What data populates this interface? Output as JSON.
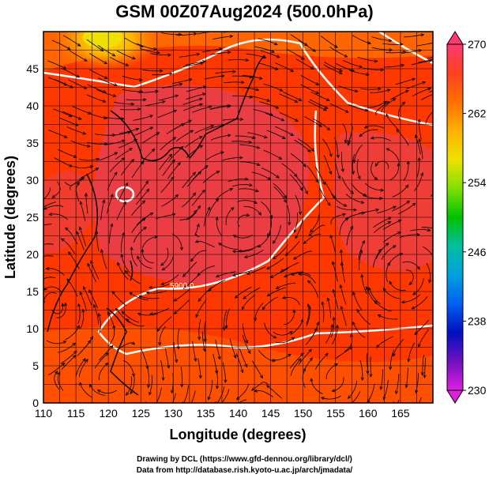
{
  "title": "GSM 00Z07Aug2024 (500.0hPa)",
  "map": {
    "x_axis": {
      "label": "Longitude (degrees)",
      "min": 110,
      "max": 170,
      "ticks": [
        "110",
        "115",
        "120",
        "125",
        "130",
        "135",
        "140",
        "145",
        "150",
        "155",
        "160",
        "165"
      ],
      "tick_values": [
        110,
        115,
        120,
        125,
        130,
        135,
        140,
        145,
        150,
        155,
        160,
        165
      ]
    },
    "y_axis": {
      "label": "Latitude  (degrees)",
      "min": 0,
      "max": 50,
      "ticks": [
        "0",
        "5",
        "10",
        "15",
        "20",
        "25",
        "30",
        "35",
        "40",
        "45"
      ],
      "tick_values": [
        0,
        5,
        10,
        15,
        20,
        25,
        30,
        35,
        40,
        45
      ]
    },
    "contour_label": "5900.0",
    "fill_colors": {
      "base": "#ff3000",
      "warm": "#e84050",
      "orange": "#ff6a00",
      "yellow": "#f0e000",
      "contour": "#ffffff"
    }
  },
  "colorbar": {
    "ticks": [
      "270",
      "262",
      "254",
      "246",
      "238",
      "230"
    ],
    "tick_values": [
      270,
      262,
      254,
      246,
      238,
      230
    ],
    "min": 230,
    "max": 270,
    "colors": [
      "#ff3a6e",
      "#ff4020",
      "#ff7000",
      "#ffb000",
      "#f0e000",
      "#80e000",
      "#00c000",
      "#00c0a0",
      "#00a0e0",
      "#0060f0",
      "#0010c0",
      "#7010c0",
      "#e020e0"
    ]
  },
  "credits": {
    "line1": "Drawing by DCL (https://www.gfd-dennou.org/library/dcl/)",
    "line2": "Data from http://database.rish.kyoto-u.ac.jp/arch/jmadata/"
  }
}
